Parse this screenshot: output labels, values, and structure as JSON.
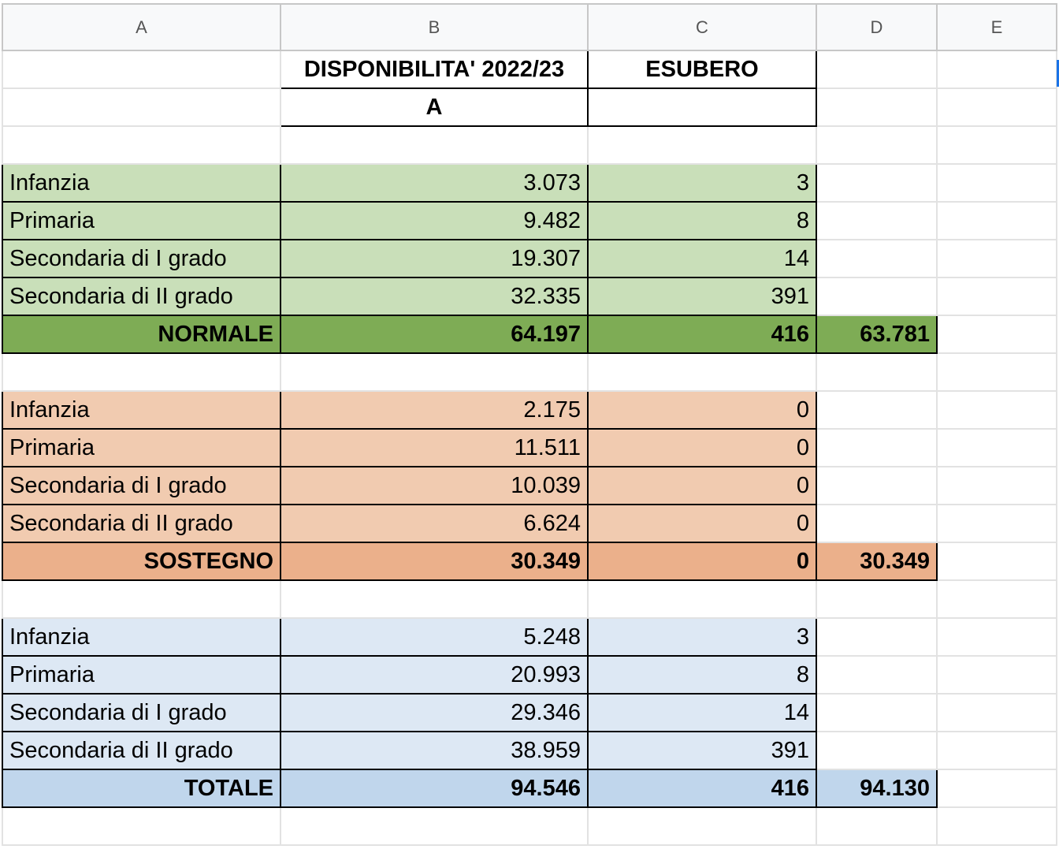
{
  "columns": [
    "A",
    "B",
    "C",
    "D",
    "E"
  ],
  "header": {
    "availability": "DISPONIBILITA' 2022/23",
    "surplus": "ESUBERO",
    "sub_a": "A"
  },
  "colors": {
    "normale_light": "#c9dfb9",
    "normale_total": "#7eac55",
    "sostegno_light": "#f1cbb0",
    "sostegno_total": "#ebb08b",
    "totale_light": "#dde8f4",
    "totale_total": "#c0d6ec"
  },
  "sections": [
    {
      "key": "normale",
      "rows": [
        {
          "label": "Infanzia",
          "disponibilita": "3.073",
          "esubero": "3"
        },
        {
          "label": "Primaria",
          "disponibilita": "9.482",
          "esubero": "8"
        },
        {
          "label": "Secondaria di I grado",
          "disponibilita": "19.307",
          "esubero": "14"
        },
        {
          "label": "Secondaria di II grado",
          "disponibilita": "32.335",
          "esubero": "391"
        }
      ],
      "total": {
        "label": "NORMALE",
        "disponibilita": "64.197",
        "esubero": "416",
        "netto": "63.781"
      }
    },
    {
      "key": "sostegno",
      "rows": [
        {
          "label": "Infanzia",
          "disponibilita": "2.175",
          "esubero": "0"
        },
        {
          "label": "Primaria",
          "disponibilita": "11.511",
          "esubero": "0"
        },
        {
          "label": "Secondaria di I grado",
          "disponibilita": "10.039",
          "esubero": "0"
        },
        {
          "label": "Secondaria di II grado",
          "disponibilita": "6.624",
          "esubero": "0"
        }
      ],
      "total": {
        "label": "SOSTEGNO",
        "disponibilita": "30.349",
        "esubero": "0",
        "netto": "30.349"
      }
    },
    {
      "key": "totale",
      "rows": [
        {
          "label": "Infanzia",
          "disponibilita": "5.248",
          "esubero": "3"
        },
        {
          "label": "Primaria",
          "disponibilita": "20.993",
          "esubero": "8"
        },
        {
          "label": "Secondaria di I grado",
          "disponibilita": "29.346",
          "esubero": "14"
        },
        {
          "label": "Secondaria di II grado",
          "disponibilita": "38.959",
          "esubero": "391"
        }
      ],
      "total": {
        "label": "TOTALE",
        "disponibilita": "94.546",
        "esubero": "416",
        "netto": "94.130"
      }
    }
  ]
}
